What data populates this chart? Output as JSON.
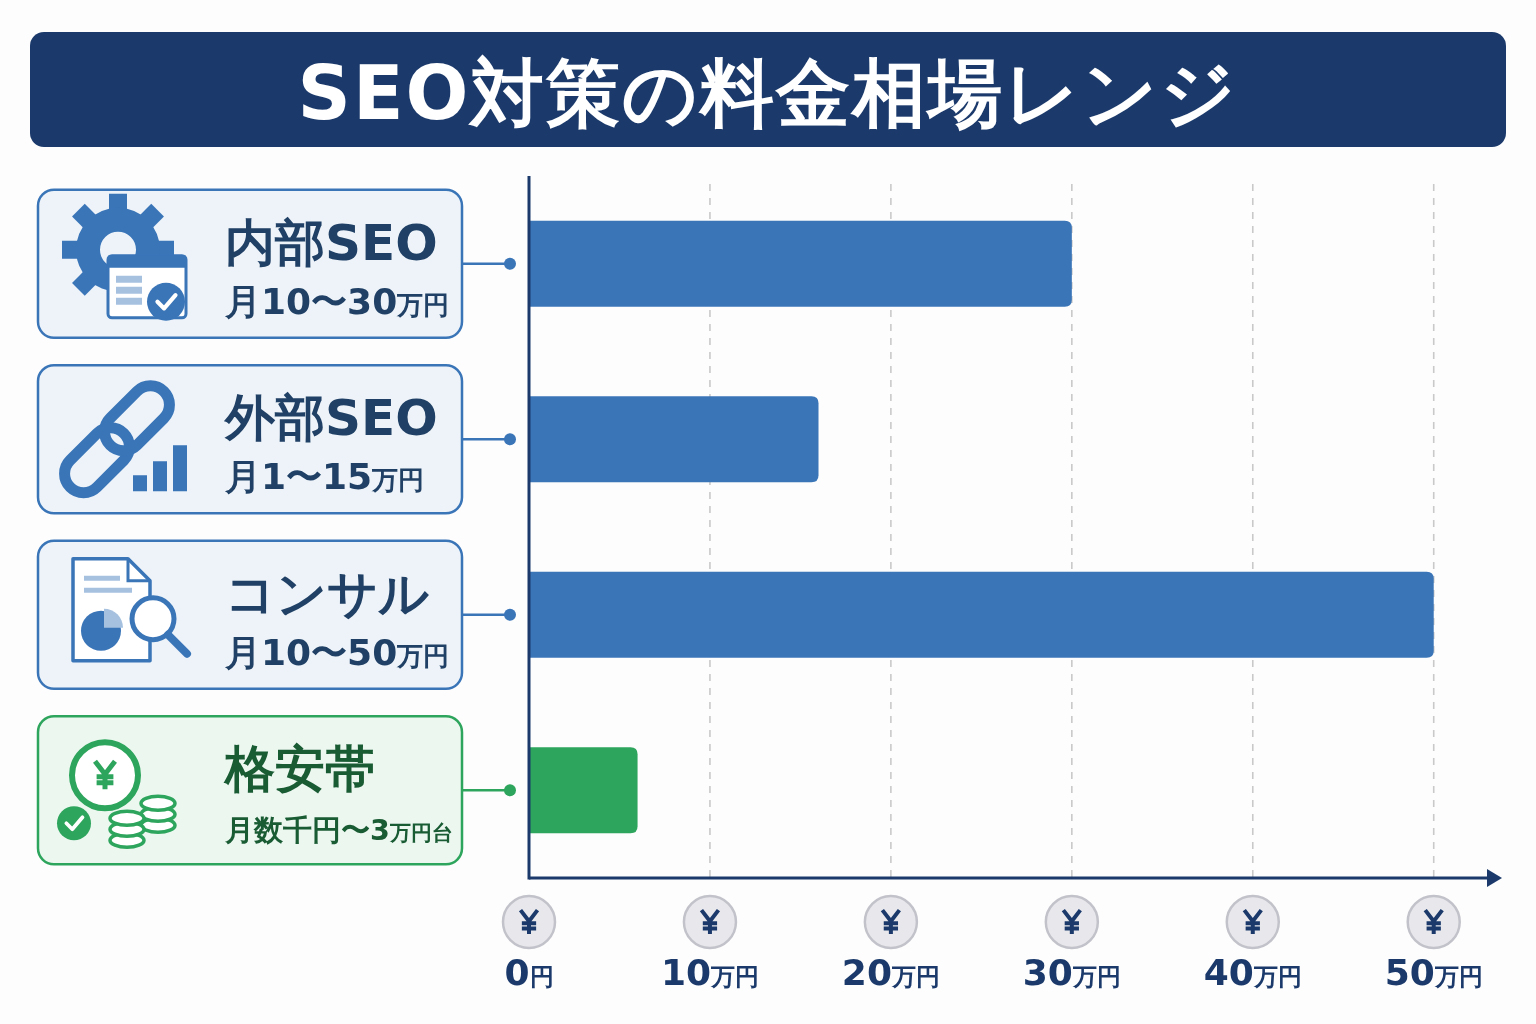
{
  "chart_data": {
    "type": "bar",
    "orientation": "horizontal",
    "title": "SEO対策の料金相場レンジ",
    "categories": [
      "内部SEO",
      "外部SEO",
      "コンサル",
      "格安帯"
    ],
    "values": [
      30,
      16,
      50,
      6
    ],
    "colors": [
      "#3a75b8",
      "#3a75b8",
      "#3a75b8",
      "#2ea55c"
    ],
    "annotations": [
      "月10〜30万円",
      "月1〜15万円",
      "月10〜50万円",
      "月数千円〜3万円台"
    ],
    "xlim": [
      0,
      53
    ],
    "xticks": [
      {
        "value": 0,
        "label": "0円"
      },
      {
        "value": 10,
        "label": "10万円"
      },
      {
        "value": 20,
        "label": "20万円"
      },
      {
        "value": 30,
        "label": "30万円"
      },
      {
        "value": 40,
        "label": "40万円"
      },
      {
        "value": 50,
        "label": "50万円"
      }
    ],
    "grid": "x"
  }
}
